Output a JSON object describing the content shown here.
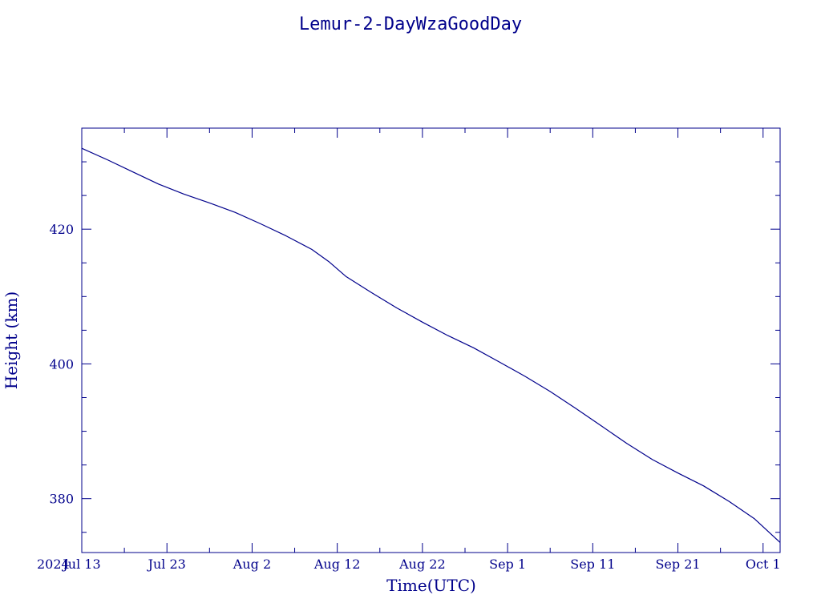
{
  "chart_data": {
    "type": "line",
    "title": "Lemur-2-DayWzaGoodDay",
    "xlabel": "Time(UTC)",
    "ylabel": "Height (km)",
    "x_year_label": "2024",
    "x_range": [
      "2024-07-13",
      "2024-10-03"
    ],
    "ylim": [
      372,
      435
    ],
    "x_ticks": [
      {
        "date": "2024-07-13",
        "label": "Jul 13"
      },
      {
        "date": "2024-07-23",
        "label": "Jul 23"
      },
      {
        "date": "2024-08-02",
        "label": "Aug  2"
      },
      {
        "date": "2024-08-12",
        "label": "Aug 12"
      },
      {
        "date": "2024-08-22",
        "label": "Aug 22"
      },
      {
        "date": "2024-09-01",
        "label": "Sep  1"
      },
      {
        "date": "2024-09-11",
        "label": "Sep 11"
      },
      {
        "date": "2024-09-21",
        "label": "Sep 21"
      },
      {
        "date": "2024-10-01",
        "label": "Oct  1"
      }
    ],
    "y_ticks": [
      {
        "value": 380,
        "label": "380"
      },
      {
        "value": 400,
        "label": "400"
      },
      {
        "value": 420,
        "label": "420"
      }
    ],
    "grid": false,
    "series": [
      {
        "color": "#00008b",
        "x": [
          "2024-07-13",
          "2024-07-16",
          "2024-07-19",
          "2024-07-22",
          "2024-07-25",
          "2024-07-28",
          "2024-07-31",
          "2024-08-03",
          "2024-08-06",
          "2024-08-09",
          "2024-08-11",
          "2024-08-13",
          "2024-08-16",
          "2024-08-19",
          "2024-08-22",
          "2024-08-25",
          "2024-08-28",
          "2024-08-31",
          "2024-09-03",
          "2024-09-06",
          "2024-09-09",
          "2024-09-12",
          "2024-09-15",
          "2024-09-18",
          "2024-09-21",
          "2024-09-24",
          "2024-09-27",
          "2024-09-30",
          "2024-10-03"
        ],
        "y": [
          432.0,
          430.3,
          428.5,
          426.7,
          425.2,
          423.9,
          422.5,
          420.8,
          419.0,
          417.0,
          415.2,
          413.0,
          410.6,
          408.3,
          406.2,
          404.2,
          402.4,
          400.3,
          398.2,
          395.9,
          393.4,
          390.8,
          388.2,
          385.8,
          383.8,
          381.9,
          379.6,
          377.0,
          373.5
        ]
      }
    ]
  }
}
